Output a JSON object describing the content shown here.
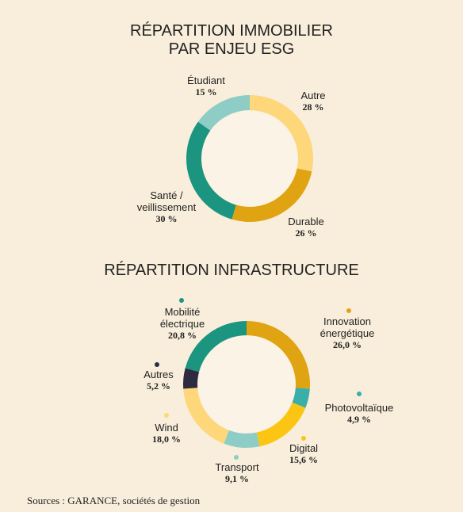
{
  "chart_data": [
    {
      "type": "donut",
      "title": "RÉPARTITION IMMOBILIER PAR ENJEU ESG",
      "categories": [
        "Autre",
        "Durable",
        "Santé / veillissement",
        "Étudiant"
      ],
      "values": [
        28,
        26,
        30,
        15
      ],
      "value_labels": [
        "28 %",
        "26 %",
        "30 %",
        "15 %"
      ],
      "colors": [
        "#fdd77a",
        "#e0a412",
        "#1b9580",
        "#8dcdc6"
      ]
    },
    {
      "type": "donut",
      "title": "RÉPARTITION INFRASTRUCTURE",
      "categories": [
        "Innovation énergétique",
        "Photovoltaïque",
        "Digital",
        "Transport",
        "Wind",
        "Autres",
        "Mobilité électrique"
      ],
      "values": [
        26.0,
        4.9,
        15.6,
        9.1,
        18.0,
        5.2,
        20.8
      ],
      "value_labels": [
        "26,0 %",
        "4,9 %",
        "15,6 %",
        "9,1 %",
        "18,0 %",
        "5,2 %",
        "20,8 %"
      ],
      "colors": [
        "#e0a412",
        "#3aaea8",
        "#fcc513",
        "#8dcdc6",
        "#fdd77a",
        "#2e2a40",
        "#1b9580"
      ]
    }
  ],
  "source": "Sources : GARANCE, sociétés de gestion"
}
